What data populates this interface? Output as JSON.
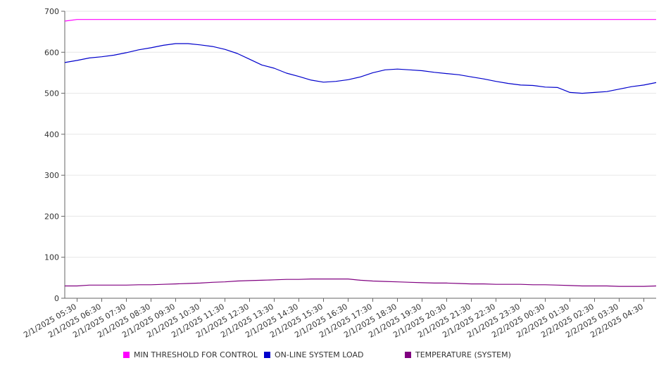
{
  "chart_data": {
    "type": "line",
    "title": "",
    "xlabel": "",
    "ylabel": "",
    "ylim": [
      0,
      700
    ],
    "yticks": [
      0,
      100,
      200,
      300,
      400,
      500,
      600,
      700
    ],
    "grid": true,
    "legend_position": "bottom",
    "x_ticks": [
      "2/1/2025 05:30",
      "2/1/2025 06:30",
      "2/1/2025 07:30",
      "2/1/2025 08:30",
      "2/1/2025 09:30",
      "2/1/2025 10:30",
      "2/1/2025 11:30",
      "2/1/2025 12:30",
      "2/1/2025 13:30",
      "2/1/2025 14:30",
      "2/1/2025 15:30",
      "2/1/2025 16:30",
      "2/1/2025 17:30",
      "2/1/2025 18:30",
      "2/1/2025 19:30",
      "2/1/2025 20:30",
      "2/1/2025 21:30",
      "2/1/2025 22:30",
      "2/1/2025 23:30",
      "2/2/2025 00:30",
      "2/2/2025 01:30",
      "2/2/2025 02:30",
      "2/2/2025 03:30",
      "2/2/2025 04:30"
    ],
    "x": [
      "2/1/2025 05:00",
      "2/1/2025 05:30",
      "2/1/2025 06:00",
      "2/1/2025 06:30",
      "2/1/2025 07:00",
      "2/1/2025 07:30",
      "2/1/2025 08:00",
      "2/1/2025 08:30",
      "2/1/2025 09:00",
      "2/1/2025 09:30",
      "2/1/2025 10:00",
      "2/1/2025 10:30",
      "2/1/2025 11:00",
      "2/1/2025 11:30",
      "2/1/2025 12:00",
      "2/1/2025 12:30",
      "2/1/2025 13:00",
      "2/1/2025 13:30",
      "2/1/2025 14:00",
      "2/1/2025 14:30",
      "2/1/2025 15:00",
      "2/1/2025 15:30",
      "2/1/2025 16:00",
      "2/1/2025 16:30",
      "2/1/2025 17:00",
      "2/1/2025 17:30",
      "2/1/2025 18:00",
      "2/1/2025 18:30",
      "2/1/2025 19:00",
      "2/1/2025 19:30",
      "2/1/2025 20:00",
      "2/1/2025 20:30",
      "2/1/2025 21:00",
      "2/1/2025 21:30",
      "2/1/2025 22:00",
      "2/1/2025 22:30",
      "2/1/2025 23:00",
      "2/1/2025 23:30",
      "2/2/2025 00:00",
      "2/2/2025 00:30",
      "2/2/2025 01:00",
      "2/2/2025 01:30",
      "2/2/2025 02:00",
      "2/2/2025 02:30",
      "2/2/2025 03:00",
      "2/2/2025 03:30",
      "2/2/2025 04:00",
      "2/2/2025 04:30",
      "2/2/2025 05:00"
    ],
    "series": [
      {
        "name": "MIN THRESHOLD FOR CONTROL",
        "color": "#ff00ff",
        "values": [
          676,
          680,
          680,
          680,
          680,
          680,
          680,
          680,
          680,
          680,
          680,
          680,
          680,
          680,
          680,
          680,
          680,
          680,
          680,
          680,
          680,
          680,
          680,
          680,
          680,
          680,
          680,
          680,
          680,
          680,
          680,
          680,
          680,
          680,
          680,
          680,
          680,
          680,
          680,
          680,
          680,
          680,
          680,
          680,
          680,
          680,
          680,
          680,
          680
        ]
      },
      {
        "name": "ON-LINE SYSTEM LOAD",
        "color": "#0000cc",
        "values": [
          575,
          580,
          586,
          589,
          593,
          599,
          606,
          611,
          617,
          621,
          621,
          618,
          614,
          607,
          597,
          583,
          569,
          561,
          549,
          541,
          532,
          527,
          529,
          533,
          540,
          550,
          557,
          559,
          557,
          555,
          551,
          548,
          545,
          540,
          535,
          529,
          524,
          520,
          519,
          515,
          514,
          502,
          500,
          502,
          504,
          510,
          516,
          520,
          526
        ]
      },
      {
        "name": "TEMPERATURE (SYSTEM)",
        "color": "#800080",
        "values": [
          30,
          30,
          32,
          32,
          32,
          32,
          33,
          33,
          34,
          35,
          36,
          37,
          39,
          40,
          42,
          43,
          44,
          45,
          46,
          46,
          47,
          47,
          47,
          47,
          44,
          42,
          41,
          40,
          39,
          38,
          37,
          37,
          36,
          35,
          35,
          34,
          34,
          34,
          33,
          33,
          32,
          31,
          30,
          30,
          30,
          29,
          29,
          29,
          30
        ]
      }
    ]
  }
}
